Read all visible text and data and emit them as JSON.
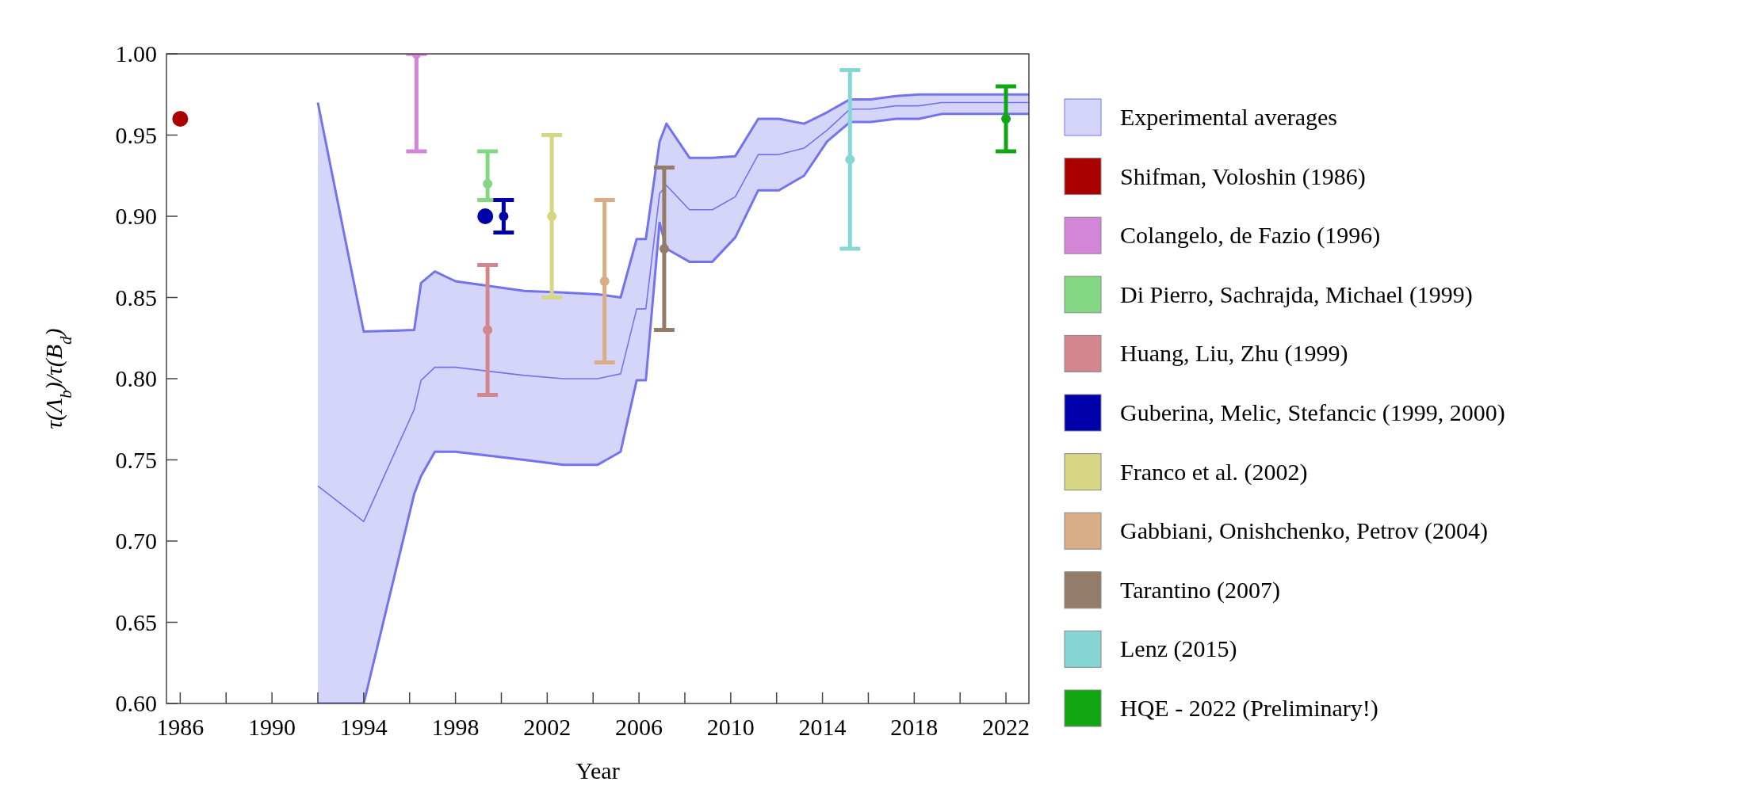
{
  "chart_data": {
    "type": "scatter",
    "xlabel": "Year",
    "ylabel": "τ(Λ$_{b}$)/τ(B$_{d}$)",
    "xlim": [
      1985.4,
      2023
    ],
    "xticks": [
      1986,
      {
        "value": 1988,
        "label": null
      },
      1990,
      {
        "value": 1992,
        "label": null
      },
      1994,
      {
        "value": 1996,
        "label": null
      },
      1998,
      {
        "value": 2000,
        "label": null
      },
      2002,
      {
        "value": 2004,
        "label": null
      },
      2006,
      {
        "value": 2008,
        "label": null
      },
      2010,
      {
        "value": 2012,
        "label": null
      },
      2014,
      {
        "value": 2016,
        "label": null
      },
      2018,
      {
        "value": 2020,
        "label": null
      },
      2022
    ],
    "ylim": [
      0.6,
      1.0
    ],
    "yticks": [
      {
        "value": 0.6,
        "label": "0.60"
      },
      {
        "value": 0.65,
        "label": "0.65"
      },
      {
        "value": 0.7,
        "label": "0.70"
      },
      {
        "value": 0.75,
        "label": "0.75"
      },
      {
        "value": 0.8,
        "label": "0.80"
      },
      {
        "value": 0.85,
        "label": "0.85"
      },
      {
        "value": 0.9,
        "label": "0.90"
      },
      {
        "value": 0.95,
        "label": "0.95"
      },
      {
        "value": 1.0,
        "label": "1.00"
      }
    ],
    "legend": "right",
    "marker": "circle",
    "series": [
      {
        "name": "Experimental averages",
        "type": "line",
        "marker": "none",
        "color": "#7373ee",
        "x": [
          1992,
          1994,
          1996.2,
          1996.5,
          1997.1,
          1998,
          2001,
          2002.7,
          2004.2,
          2005.2,
          2005.9,
          2006.3,
          2006.9,
          2007.2,
          2008.2,
          2009.2,
          2010.2,
          2011.2,
          2012.1,
          2013.2,
          2014.2,
          2015.2,
          2016.1,
          2017.2,
          2018.2,
          2019.2,
          2023
        ],
        "values": [
          0.734,
          0.712,
          0.781,
          0.799,
          0.807,
          0.807,
          0.802,
          0.8,
          0.8,
          0.803,
          0.843,
          0.843,
          0.914,
          0.919,
          0.904,
          0.904,
          0.912,
          0.938,
          0.938,
          0.942,
          0.953,
          0.966,
          0.966,
          0.968,
          0.968,
          0.97,
          0.97
        ],
        "lower": [
          0.6,
          0.6,
          0.729,
          0.74,
          0.755,
          0.755,
          0.75,
          0.747,
          0.747,
          0.755,
          0.799,
          0.799,
          0.896,
          0.88,
          0.872,
          0.872,
          0.887,
          0.916,
          0.916,
          0.925,
          0.946,
          0.958,
          0.958,
          0.96,
          0.96,
          0.963,
          0.963
        ],
        "upper": [
          0.97,
          0.829,
          0.83,
          0.859,
          0.866,
          0.86,
          0.854,
          0.853,
          0.852,
          0.85,
          0.886,
          0.886,
          0.946,
          0.957,
          0.936,
          0.936,
          0.937,
          0.96,
          0.96,
          0.957,
          0.964,
          0.972,
          0.972,
          0.974,
          0.975,
          0.975,
          0.975
        ]
      },
      {
        "type": "line",
        "marker": "none",
        "color": "#7373ee",
        "x": [
          1992,
          1994,
          1996.2,
          1996.5,
          1997.1,
          1998,
          2001,
          2002.7,
          2004.2,
          2005.2,
          2005.9,
          2006.3,
          2006.9,
          2007.2,
          2008.2,
          2009.2,
          2010.2,
          2011.2,
          2012.1,
          2013.2,
          2014.2,
          2015.2,
          2016.1,
          2017.2,
          2018.2,
          2019.2,
          2023
        ],
        "values": [
          0.6,
          0.6,
          0.729,
          0.74,
          0.755,
          0.755,
          0.75,
          0.747,
          0.747,
          0.755,
          0.799,
          0.799,
          0.896,
          0.88,
          0.872,
          0.872,
          0.887,
          0.916,
          0.916,
          0.925,
          0.946,
          0.958,
          0.958,
          0.96,
          0.96,
          0.963,
          0.963
        ]
      },
      {
        "type": "line",
        "marker": "none",
        "color": "#7373ee",
        "x": [
          1992,
          1994,
          1996.2,
          1996.5,
          1997.1,
          1998,
          2001,
          2002.7,
          2004.2,
          2005.2,
          2005.9,
          2006.3,
          2006.9,
          2007.2,
          2008.2,
          2009.2,
          2010.2,
          2011.2,
          2012.1,
          2013.2,
          2014.2,
          2015.2,
          2016.1,
          2017.2,
          2018.2,
          2019.2,
          2023
        ],
        "values": [
          0.97,
          0.829,
          0.83,
          0.859,
          0.866,
          0.86,
          0.854,
          0.853,
          0.852,
          0.85,
          0.886,
          0.886,
          0.946,
          0.957,
          0.936,
          0.936,
          0.937,
          0.96,
          0.96,
          0.957,
          0.964,
          0.972,
          0.972,
          0.974,
          0.975,
          0.975,
          0.975
        ]
      },
      {
        "name": "Shifman, Voloshin (1986)",
        "color": "#aa0000",
        "x": [
          1986
        ],
        "values": [
          0.96
        ]
      },
      {
        "name": "Colangelo, de Fazio (1996)",
        "color": "#d385d8",
        "x": [
          1996.3
        ],
        "values": [
          1.0
        ],
        "errors": [
          [
            0.94,
            1.0
          ]
        ]
      },
      {
        "name": "Di Pierro, Sachrajda, Michael (1999)",
        "color": "#84d884",
        "x": [
          1999.4
        ],
        "values": [
          0.92
        ],
        "errors": [
          [
            0.91,
            0.94
          ]
        ]
      },
      {
        "name": "Huang, Liu, Zhu (1999)",
        "color": "#d4868e",
        "x": [
          1999.4
        ],
        "values": [
          0.83
        ],
        "errors": [
          [
            0.79,
            0.87
          ]
        ]
      },
      {
        "name": "Guberina, Melic, Stefancic (1999, 2000)",
        "color": "#0000aa",
        "x": [
          1999.3,
          2000.1
        ],
        "values": [
          0.9,
          0.9
        ],
        "errors": [
          null,
          [
            0.89,
            0.91
          ]
        ]
      },
      {
        "name": "Franco et al. (2002)",
        "color": "#d6d685",
        "x": [
          2002.2
        ],
        "values": [
          0.9
        ],
        "errors": [
          [
            0.85,
            0.95
          ]
        ]
      },
      {
        "name": "Gabbiani, Onishchenko, Petrov (2004)",
        "color": "#d9ad86",
        "x": [
          2004.5
        ],
        "values": [
          0.86
        ],
        "errors": [
          [
            0.81,
            0.91
          ]
        ]
      },
      {
        "name": "Tarantino (2007)",
        "color": "#937d6a",
        "x": [
          2007.1
        ],
        "values": [
          0.88
        ],
        "errors": [
          [
            0.83,
            0.93
          ]
        ]
      },
      {
        "name": "Lenz (2015)",
        "color": "#86d6d6",
        "x": [
          2015.2
        ],
        "values": [
          0.935
        ],
        "errors": [
          [
            0.88,
            0.99
          ]
        ]
      },
      {
        "name": "HQE - 2022 (Preliminary!)",
        "color": "#12a612",
        "x": [
          2022
        ],
        "values": [
          0.96
        ],
        "errors": [
          [
            0.94,
            0.98
          ]
        ]
      }
    ]
  }
}
